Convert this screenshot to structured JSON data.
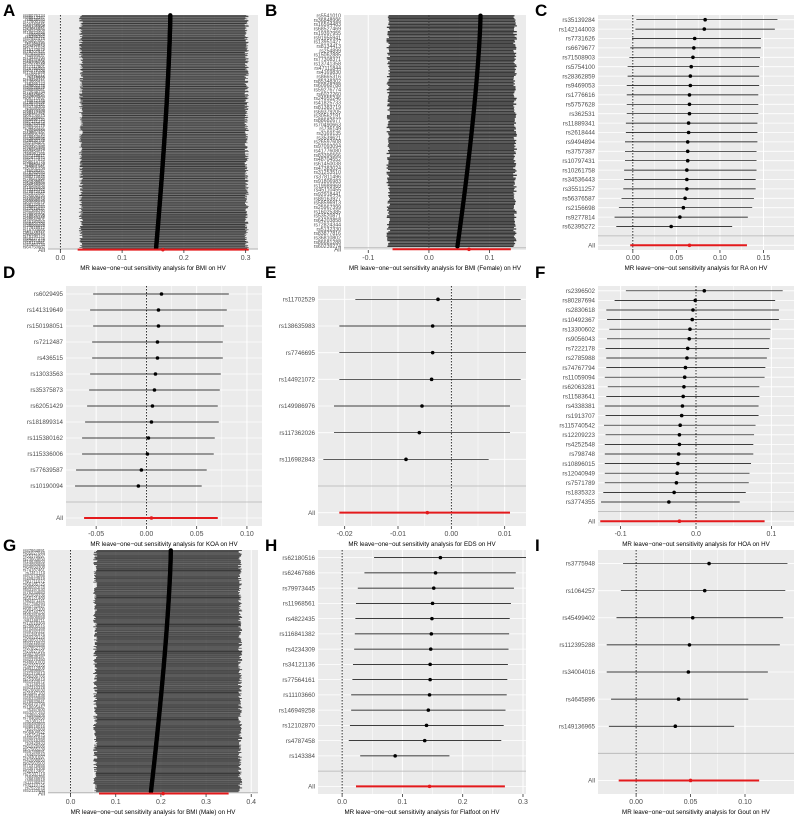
{
  "figure": {
    "background": "#ffffff"
  },
  "style": {
    "panel_bg": "#ebebeb",
    "grid_color": "#ffffff",
    "line_color": "#000000",
    "overall_color": "#e41a1c",
    "dense_fill": "#3a3a3a",
    "text_color": "#4d4d4d"
  },
  "chart_data": [
    {
      "panel": "A",
      "type": "forest",
      "xlabel": "MR leave−one−out sensitivity analysis for BMI on HV",
      "xlim": [
        -0.02,
        0.32
      ],
      "xticks": [
        0.0,
        0.1,
        0.2,
        0.3
      ],
      "xtick_labels": [
        "0.0",
        "0.1",
        "0.2",
        "0.3"
      ],
      "dense": true,
      "n_snps": 330,
      "estimate_range": [
        0.155,
        0.178
      ],
      "ci_range": [
        0.03,
        0.305
      ],
      "overall": {
        "label": "All",
        "beta": 0.166,
        "lower": 0.028,
        "upper": 0.305
      }
    },
    {
      "panel": "B",
      "type": "forest",
      "xlabel": "MR leave−one−out sensitivity analysis for BMI (Female) on HV",
      "xlim": [
        -0.14,
        0.16
      ],
      "xticks": [
        -0.1,
        0.0,
        0.1
      ],
      "xtick_labels": [
        "-0.1",
        "0.0",
        "0.1"
      ],
      "dense": true,
      "n_snps": 160,
      "estimate_range": [
        0.047,
        0.085
      ],
      "ci_range": [
        -0.07,
        0.145
      ],
      "overall": {
        "label": "All",
        "beta": 0.066,
        "lower": -0.06,
        "upper": 0.135
      }
    },
    {
      "panel": "C",
      "type": "forest",
      "xlabel": "MR leave−one−out sensitivity analysis for RA on HV",
      "xlim": [
        -0.04,
        0.185
      ],
      "xticks": [
        0.0,
        0.05,
        0.1,
        0.15
      ],
      "xtick_labels": [
        "0.00",
        "0.05",
        "0.10",
        "0.15"
      ],
      "snps": [
        "rs35139284",
        "rs142144003",
        "rs7731626",
        "rs6679677",
        "rs71508903",
        "rs5754100",
        "rs28362859",
        "rs9469053",
        "rs1776616",
        "rs5757628",
        "rs362531",
        "rs11889341",
        "rs2618444",
        "rs9494894",
        "rs3757387",
        "rs10797431",
        "rs10261758",
        "rs34536443",
        "rs35511257",
        "rs56376587",
        "rs2156698",
        "rs9277814",
        "rs62395272"
      ],
      "beta": [
        0.083,
        0.082,
        0.071,
        0.07,
        0.069,
        0.067,
        0.066,
        0.066,
        0.065,
        0.065,
        0.065,
        0.064,
        0.064,
        0.063,
        0.063,
        0.063,
        0.062,
        0.062,
        0.062,
        0.06,
        0.058,
        0.054,
        0.044
      ],
      "lower": [
        0.004,
        0.003,
        -0.001,
        -0.003,
        -0.004,
        -0.006,
        -0.006,
        -0.007,
        -0.007,
        -0.007,
        -0.007,
        -0.008,
        -0.008,
        -0.009,
        -0.009,
        -0.009,
        -0.01,
        -0.01,
        -0.011,
        -0.013,
        -0.016,
        -0.021,
        -0.019
      ],
      "upper": [
        0.166,
        0.163,
        0.147,
        0.147,
        0.146,
        0.145,
        0.145,
        0.145,
        0.144,
        0.144,
        0.144,
        0.143,
        0.143,
        0.143,
        0.142,
        0.142,
        0.142,
        0.141,
        0.141,
        0.139,
        0.137,
        0.132,
        0.114
      ],
      "overall": {
        "label": "All",
        "beta": 0.065,
        "lower": -0.003,
        "upper": 0.131
      }
    },
    {
      "panel": "D",
      "type": "forest",
      "xlabel": "MR leave−one−out sensitivity analysis for KOA on HV",
      "xlim": [
        -0.08,
        0.115
      ],
      "xticks": [
        -0.05,
        0.0,
        0.05,
        0.1
      ],
      "xtick_labels": [
        "-0.05",
        "0.00",
        "0.05",
        "0.10"
      ],
      "snps": [
        "rs6029495",
        "rs141319649",
        "rs150198051",
        "rs7212487",
        "rs436515",
        "rs13033563",
        "rs35375873",
        "rs62051429",
        "rs181899314",
        "rs115380162",
        "rs115336006",
        "rs77639587",
        "rs10190094"
      ],
      "beta": [
        0.015,
        0.012,
        0.012,
        0.011,
        0.011,
        0.009,
        0.008,
        0.006,
        0.005,
        0.002,
        0.001,
        -0.005,
        -0.008
      ],
      "lower": [
        -0.053,
        -0.056,
        -0.053,
        -0.054,
        -0.054,
        -0.056,
        -0.057,
        -0.059,
        -0.061,
        -0.064,
        -0.064,
        -0.07,
        -0.071
      ],
      "upper": [
        0.082,
        0.08,
        0.077,
        0.076,
        0.076,
        0.074,
        0.073,
        0.071,
        0.072,
        0.068,
        0.067,
        0.06,
        0.055
      ],
      "overall": {
        "label": "All",
        "beta": 0.005,
        "lower": -0.062,
        "upper": 0.071
      }
    },
    {
      "panel": "E",
      "type": "forest",
      "xlabel": "MR leave−one−out sensitivity analysis for EDS on HV",
      "xlim": [
        -0.025,
        0.014
      ],
      "xticks": [
        -0.02,
        -0.01,
        0.0,
        0.01
      ],
      "xtick_labels": [
        "-0.02",
        "-0.01",
        "0.00",
        "0.01"
      ],
      "snps": [
        "rs11702529",
        "rs138635983",
        "rs7746695",
        "rs144921072",
        "rs149986976",
        "rs117362026",
        "rs116982843"
      ],
      "beta": [
        -0.0025,
        -0.0035,
        -0.0035,
        -0.0037,
        -0.0055,
        -0.006,
        -0.0085
      ],
      "lower": [
        -0.018,
        -0.021,
        -0.021,
        -0.021,
        -0.022,
        -0.022,
        -0.024
      ],
      "upper": [
        0.013,
        0.014,
        0.014,
        0.013,
        0.011,
        0.011,
        0.007
      ],
      "overall": {
        "label": "All",
        "beta": -0.0045,
        "lower": -0.021,
        "upper": 0.011
      }
    },
    {
      "panel": "F",
      "type": "forest",
      "xlabel": "MR leave−one−out sensitivity analysis for HOA on HV",
      "xlim": [
        -0.13,
        0.13
      ],
      "xticks": [
        -0.1,
        0.0,
        0.1
      ],
      "xtick_labels": [
        "-0.1",
        "0.0",
        "0.1"
      ],
      "snps": [
        "rs2396502",
        "rs80287694",
        "rs2830618",
        "rs10492367",
        "rs13300602",
        "rs9056043",
        "rs7222178",
        "rs2785988",
        "rs74767794",
        "rs11059094",
        "rs62063281",
        "rs11583641",
        "rs4338381",
        "rs1913707",
        "rs115740542",
        "rs12209223",
        "rs4252548",
        "rs798748",
        "rs10896015",
        "rs12040949",
        "rs7571789",
        "rs1835323",
        "rs3774355"
      ],
      "beta": [
        0.011,
        -0.001,
        -0.004,
        -0.005,
        -0.008,
        -0.009,
        -0.011,
        -0.012,
        -0.014,
        -0.015,
        -0.016,
        -0.017,
        -0.018,
        -0.019,
        -0.021,
        -0.022,
        -0.022,
        -0.023,
        -0.024,
        -0.025,
        -0.026,
        -0.029,
        -0.036
      ],
      "lower": [
        -0.093,
        -0.108,
        -0.119,
        -0.118,
        -0.115,
        -0.118,
        -0.12,
        -0.119,
        -0.119,
        -0.121,
        -0.117,
        -0.119,
        -0.121,
        -0.12,
        -0.122,
        -0.12,
        -0.121,
        -0.121,
        -0.121,
        -0.121,
        -0.121,
        -0.123,
        -0.126
      ],
      "upper": [
        0.115,
        0.105,
        0.11,
        0.11,
        0.099,
        0.098,
        0.097,
        0.094,
        0.092,
        0.091,
        0.084,
        0.084,
        0.083,
        0.083,
        0.079,
        0.077,
        0.076,
        0.076,
        0.073,
        0.071,
        0.07,
        0.066,
        0.058
      ],
      "overall": {
        "label": "All",
        "beta": -0.022,
        "lower": -0.127,
        "upper": 0.091
      }
    },
    {
      "panel": "G",
      "type": "forest",
      "xlabel": "MR leave−one−out sensitivity analysis for BMI (Male) on HV",
      "xlim": [
        -0.05,
        0.415
      ],
      "xticks": [
        0.0,
        0.1,
        0.2,
        0.3,
        0.4
      ],
      "xtick_labels": [
        "0.0",
        "0.1",
        "0.2",
        "0.3",
        "0.4"
      ],
      "dense": true,
      "n_snps": 260,
      "estimate_range": [
        0.178,
        0.222
      ],
      "ci_range": [
        0.05,
        0.38
      ],
      "overall": {
        "label": "All",
        "beta": 0.205,
        "lower": 0.063,
        "upper": 0.35
      }
    },
    {
      "panel": "H",
      "type": "forest",
      "xlabel": "MR leave−one−out sensitivity analysis for Flatfoot on HV",
      "xlim": [
        -0.04,
        0.305
      ],
      "xticks": [
        0.0,
        0.1,
        0.2,
        0.3
      ],
      "xtick_labels": [
        "0.0",
        "0.1",
        "0.2",
        "0.3"
      ],
      "snps": [
        "rs62180516",
        "rs62467686",
        "rs79973445",
        "rs11968561",
        "rs4822435",
        "rs116841382",
        "rs4234309",
        "rs34121136",
        "rs77564161",
        "rs11103660",
        "rs146949258",
        "rs12102870",
        "rs4787458",
        "rs143384"
      ],
      "beta": [
        0.163,
        0.155,
        0.152,
        0.15,
        0.149,
        0.148,
        0.147,
        0.146,
        0.146,
        0.145,
        0.143,
        0.14,
        0.137,
        0.088
      ],
      "lower": [
        0.053,
        0.037,
        0.026,
        0.023,
        0.022,
        0.021,
        0.02,
        0.018,
        0.017,
        0.015,
        0.015,
        0.013,
        0.011,
        0.03
      ],
      "upper": [
        0.305,
        0.288,
        0.285,
        0.28,
        0.278,
        0.277,
        0.276,
        0.275,
        0.274,
        0.273,
        0.271,
        0.268,
        0.264,
        0.178
      ],
      "overall": {
        "label": "All",
        "beta": 0.145,
        "lower": 0.023,
        "upper": 0.27
      }
    },
    {
      "panel": "I",
      "type": "forest",
      "xlabel": "MR leave−one−out sensitivity analysis for Gout on HV",
      "xlim": [
        -0.035,
        0.145
      ],
      "xticks": [
        0.0,
        0.05,
        0.1
      ],
      "xtick_labels": [
        "0.00",
        "0.05",
        "0.10"
      ],
      "snps": [
        "rs3775948",
        "rs1064257",
        "rs45499402",
        "rs112395288",
        "rs34004016",
        "rs4645896",
        "rs149136965"
      ],
      "beta": [
        0.067,
        0.063,
        0.052,
        0.049,
        0.048,
        0.039,
        0.036
      ],
      "lower": [
        -0.012,
        -0.014,
        -0.018,
        -0.027,
        -0.027,
        -0.023,
        -0.025
      ],
      "upper": [
        0.139,
        0.137,
        0.135,
        0.132,
        0.121,
        0.103,
        0.09
      ],
      "overall": {
        "label": "All",
        "beta": 0.05,
        "lower": -0.016,
        "upper": 0.113
      }
    }
  ]
}
